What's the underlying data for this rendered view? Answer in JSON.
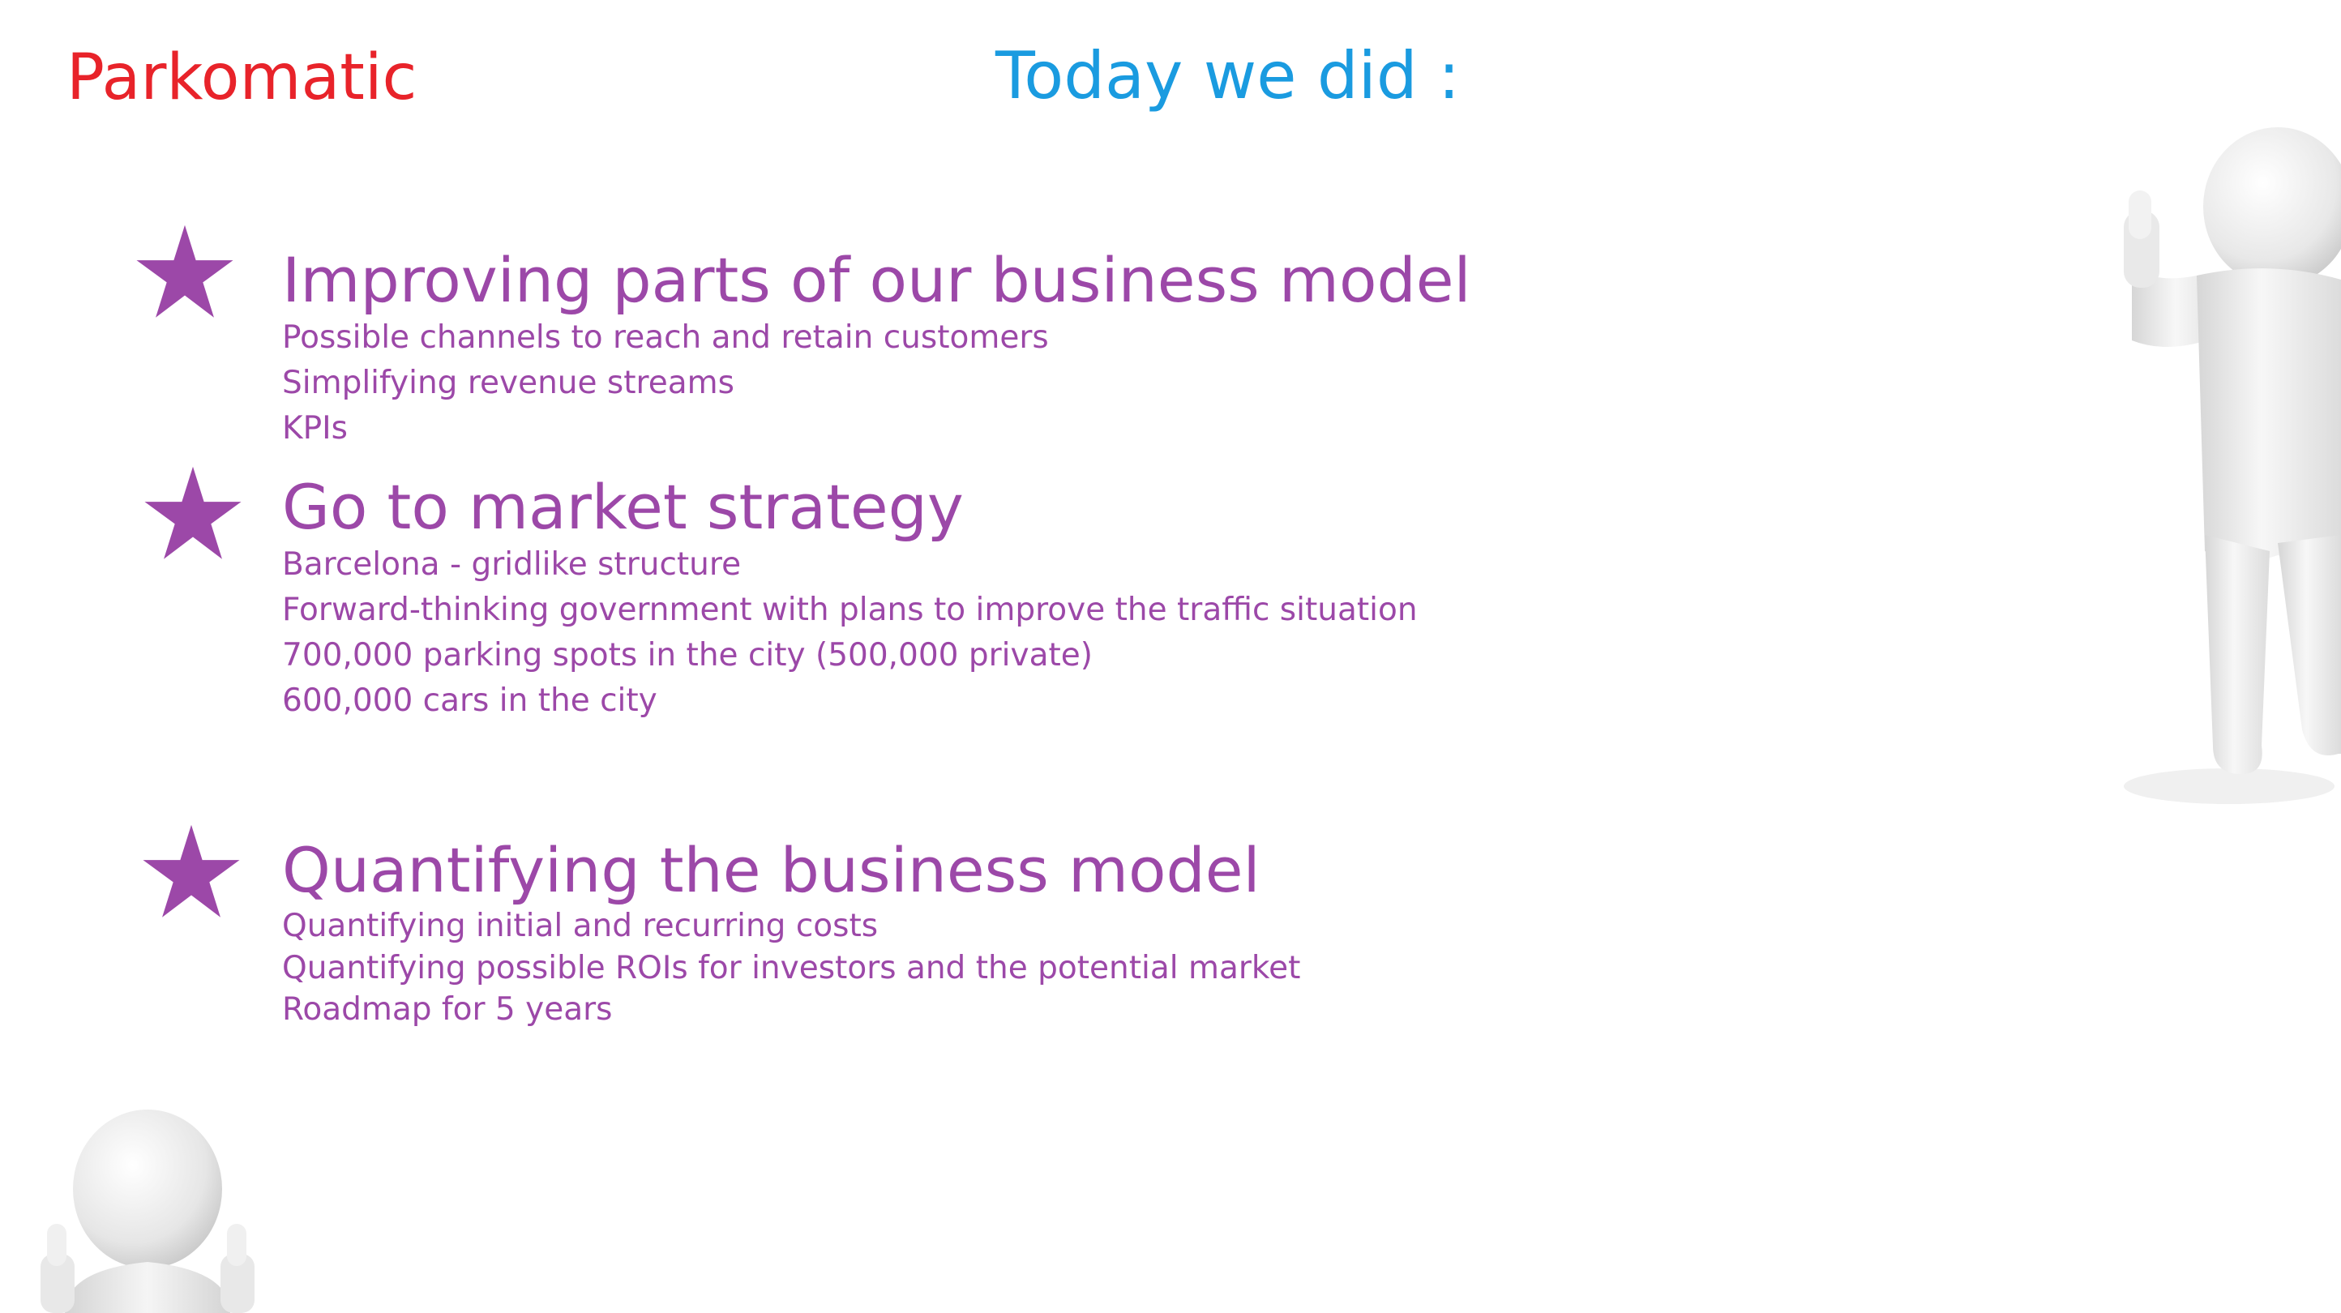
{
  "slide": {
    "brand": "Parkomatic",
    "title": "Today we did :",
    "accent_color": "#9c48a8",
    "brand_color": "#e8232a",
    "title_color": "#1a9be0",
    "sections": [
      {
        "heading": "Improving parts of our business model",
        "items": [
          "Possible channels to reach and retain customers",
          "Simplifying revenue streams",
          "KPIs"
        ]
      },
      {
        "heading": "Go to market strategy",
        "items": [
          "Barcelona - gridlike structure",
          "Forward-thinking government with plans to improve the traffic situation",
          "700,000 parking spots in the city (500,000 private)",
          "600,000 cars in the city"
        ]
      },
      {
        "heading": "Quantifying the business model",
        "items": [
          "Quantifying initial and recurring costs",
          "Quantifying possible ROIs for investors and the potential market",
          "Roadmap for 5 years"
        ]
      }
    ],
    "bullet_icon": "star-icon",
    "illustrations": [
      "thumbs-up-figure-icon",
      "double-thumbs-up-figure-icon"
    ]
  }
}
